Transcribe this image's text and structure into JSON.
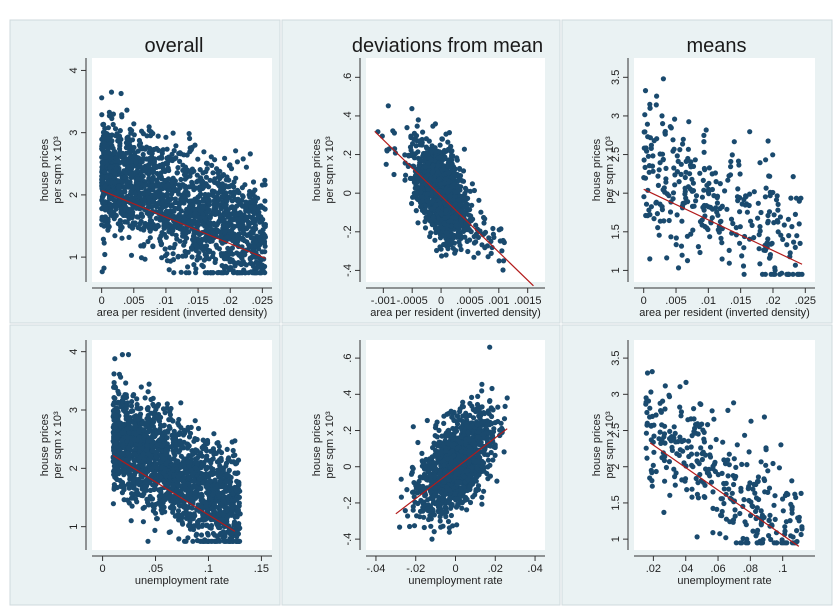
{
  "colors": {
    "page_bg": "#ffffff",
    "panel_bg": "#eaf2f3",
    "plot_bg": "#ffffff",
    "border": "#cfdadc",
    "points": "#1a4a6e",
    "fit_line": "#b21a1a",
    "text": "#222222"
  },
  "chart_data": [
    {
      "type": "scatter",
      "title": "overall",
      "xlabel": "area per resident (inverted density)",
      "ylabel": [
        "house prices",
        "per sqm x 10³"
      ],
      "xlim": [
        -0.0015,
        0.0265
      ],
      "ylim": [
        0.6,
        4.2
      ],
      "xticks": [
        0,
        0.005,
        0.01,
        0.015,
        0.02,
        0.025
      ],
      "xtick_labels": [
        "0",
        ".005",
        ".01",
        ".015",
        ".02",
        ".025"
      ],
      "yticks": [
        1,
        2,
        3,
        4
      ],
      "ytick_labels": [
        "1",
        "2",
        "3",
        "4"
      ],
      "fit": {
        "x": [
          0,
          0.0255
        ],
        "y": [
          2.07,
          0.98
        ]
      },
      "points": {
        "n": 1800,
        "x_range": [
          0,
          0.0255
        ],
        "y_center": 1.8,
        "y_spread": 0.45,
        "y_range": [
          0.75,
          3.95
        ],
        "slope": -42
      }
    },
    {
      "type": "scatter",
      "title": "deviations from mean",
      "xlabel": "area per resident (inverted density)",
      "ylabel": [
        "house prices",
        "per sqm x 10³"
      ],
      "xlim": [
        -0.0013,
        0.0018
      ],
      "ylim": [
        -0.46,
        0.7
      ],
      "xticks": [
        -0.001,
        -0.0005,
        0,
        0.0005,
        0.001,
        0.0015
      ],
      "xtick_labels": [
        "-.001",
        "-.0005",
        "0",
        ".0005",
        ".001",
        ".0015"
      ],
      "yticks": [
        -0.4,
        -0.2,
        0,
        0.2,
        0.4,
        0.6
      ],
      "ytick_labels": [
        "-.4",
        "-.2",
        "0",
        ".2",
        ".4",
        ".6"
      ],
      "fit": {
        "x": [
          -0.00115,
          0.0016
        ],
        "y": [
          0.32,
          -0.48
        ]
      },
      "points": {
        "n": 1200,
        "x_range": [
          -0.0011,
          0.0016
        ],
        "y_center": 0,
        "y_spread": 0.12,
        "y_range": [
          -0.4,
          0.66
        ],
        "slope": -280
      }
    },
    {
      "type": "scatter",
      "title": "means",
      "xlabel": "area per resident (inverted density)",
      "ylabel": [
        "house prices",
        "per sqm x 10³"
      ],
      "xlim": [
        -0.0015,
        0.0265
      ],
      "ylim": [
        0.85,
        3.75
      ],
      "xticks": [
        0,
        0.005,
        0.01,
        0.015,
        0.02,
        0.025
      ],
      "xtick_labels": [
        "0",
        ".005",
        ".01",
        ".015",
        ".02",
        ".025"
      ],
      "yticks": [
        1,
        1.5,
        2,
        2.5,
        3,
        3.5
      ],
      "ytick_labels": [
        "1",
        "1.5",
        "2",
        "2.5",
        "3",
        "3.5"
      ],
      "fit": {
        "x": [
          0,
          0.0245
        ],
        "y": [
          2.05,
          1.08
        ]
      },
      "points": {
        "n": 330,
        "x_range": [
          0,
          0.0245
        ],
        "y_center": 1.85,
        "y_spread": 0.45,
        "y_range": [
          0.95,
          3.6
        ],
        "slope": -40
      }
    },
    {
      "type": "scatter",
      "title": "",
      "xlabel": "unemployment rate",
      "ylabel": [
        "house prices",
        "per sqm x 10³"
      ],
      "xlim": [
        -0.01,
        0.16
      ],
      "ylim": [
        0.6,
        4.2
      ],
      "xticks": [
        0,
        0.05,
        0.1,
        0.15
      ],
      "xtick_labels": [
        "0",
        ".05",
        ".1",
        ".15"
      ],
      "yticks": [
        1,
        2,
        3,
        4
      ],
      "ytick_labels": [
        "1",
        "2",
        "3",
        "4"
      ],
      "fit": {
        "x": [
          0.01,
          0.125
        ],
        "y": [
          2.22,
          0.92
        ]
      },
      "points": {
        "n": 1800,
        "x_range": [
          0.01,
          0.13
        ],
        "y_center": 1.9,
        "y_spread": 0.45,
        "y_range": [
          0.75,
          3.95
        ],
        "slope": -11
      }
    },
    {
      "type": "scatter",
      "title": "",
      "xlabel": "unemployment rate",
      "ylabel": [
        "house prices",
        "per sqm x 10³"
      ],
      "xlim": [
        -0.045,
        0.045
      ],
      "ylim": [
        -0.46,
        0.7
      ],
      "xticks": [
        -0.04,
        -0.02,
        0,
        0.02,
        0.04
      ],
      "xtick_labels": [
        "-.04",
        "-.02",
        "0",
        ".02",
        ".04"
      ],
      "yticks": [
        -0.4,
        -0.2,
        0,
        0.2,
        0.4,
        0.6
      ],
      "ytick_labels": [
        "-.4",
        "-.2",
        "0",
        ".2",
        ".4",
        ".6"
      ],
      "fit": {
        "x": [
          -0.03,
          0.026
        ],
        "y": [
          -0.26,
          0.21
        ]
      },
      "points": {
        "n": 1200,
        "x_range": [
          -0.03,
          0.026
        ],
        "y_center": 0,
        "y_spread": 0.12,
        "y_range": [
          -0.4,
          0.66
        ],
        "slope": 8.4
      }
    },
    {
      "type": "scatter",
      "title": "",
      "xlabel": "unemployment rate",
      "ylabel": [
        "house prices",
        "per sqm x 10³"
      ],
      "xlim": [
        0.008,
        0.12
      ],
      "ylim": [
        0.85,
        3.75
      ],
      "xticks": [
        0.02,
        0.04,
        0.06,
        0.08,
        0.1
      ],
      "xtick_labels": [
        ".02",
        ".04",
        ".06",
        ".08",
        ".1"
      ],
      "yticks": [
        1,
        1.5,
        2,
        2.5,
        3,
        3.5
      ],
      "ytick_labels": [
        "1",
        "1.5",
        "2",
        "2.5",
        "3",
        "3.5"
      ],
      "fit": {
        "x": [
          0.018,
          0.11
        ],
        "y": [
          2.33,
          0.9
        ]
      },
      "points": {
        "n": 330,
        "x_range": [
          0.015,
          0.112
        ],
        "y_center": 1.85,
        "y_spread": 0.42,
        "y_range": [
          0.95,
          3.6
        ],
        "slope": -15.5
      }
    }
  ]
}
